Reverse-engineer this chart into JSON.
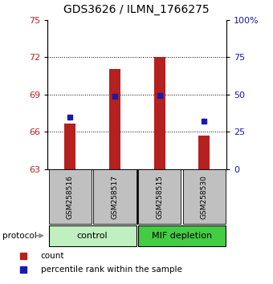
{
  "title": "GDS3626 / ILMN_1766275",
  "samples": [
    "GSM258516",
    "GSM258517",
    "GSM258515",
    "GSM258530"
  ],
  "bar_values": [
    66.65,
    71.05,
    72.0,
    65.72
  ],
  "percentile_values": [
    35,
    48.5,
    49.5,
    32
  ],
  "bar_bottom": 63,
  "ylim_left": [
    63,
    75
  ],
  "ylim_right": [
    0,
    100
  ],
  "yticks_left": [
    63,
    66,
    69,
    72,
    75
  ],
  "yticks_right": [
    0,
    25,
    50,
    75,
    100
  ],
  "ytick_labels_right": [
    "0",
    "25",
    "50",
    "75",
    "100%"
  ],
  "hlines": [
    66,
    69,
    72
  ],
  "bar_color": "#b52020",
  "percentile_color": "#1a1aaa",
  "control_color": "#c0f0c0",
  "mif_color": "#44cc44",
  "label_bg_color": "#c0c0c0",
  "protocol_label": "protocol",
  "group_labels": [
    "control",
    "MIF depletion"
  ],
  "legend_bar": "count",
  "legend_pct": "percentile rank within the sample",
  "title_fontsize": 10,
  "tick_fontsize": 8,
  "bar_width": 0.25
}
